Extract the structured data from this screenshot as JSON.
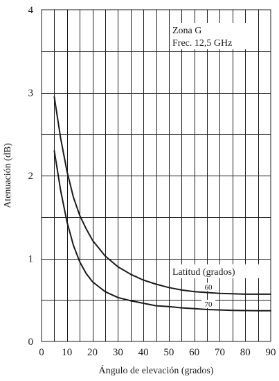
{
  "chart_data": {
    "type": "line",
    "title": "",
    "xlabel": "Ángulo de elevación (grados)",
    "ylabel": "Atenuación (dB)",
    "xlim": [
      0,
      90
    ],
    "ylim": [
      0,
      4
    ],
    "xticks": [
      0,
      10,
      20,
      30,
      40,
      50,
      60,
      70,
      80,
      90
    ],
    "yticks": [
      0,
      1,
      2,
      3,
      4
    ],
    "x_minor_step": 5,
    "y_minor_step": 0.5,
    "grid": true,
    "annotations": [
      "Zona G",
      "Frec. 12,5 GHz"
    ],
    "legend_title": "Latitud (grados)",
    "series": [
      {
        "name": "60",
        "x": [
          5,
          7.5,
          10,
          12.5,
          15,
          17.5,
          20,
          25,
          30,
          35,
          40,
          45,
          50,
          55,
          60,
          65,
          70,
          75,
          80,
          85,
          90
        ],
        "values": [
          2.95,
          2.45,
          2.05,
          1.74,
          1.52,
          1.36,
          1.22,
          1.03,
          0.9,
          0.81,
          0.74,
          0.69,
          0.65,
          0.62,
          0.6,
          0.59,
          0.58,
          0.575,
          0.57,
          0.57,
          0.57
        ]
      },
      {
        "name": "70",
        "x": [
          5,
          7.5,
          10,
          12.5,
          15,
          17.5,
          20,
          25,
          30,
          35,
          40,
          45,
          50,
          55,
          60,
          65,
          70,
          75,
          80,
          85,
          90
        ],
        "values": [
          2.3,
          1.82,
          1.44,
          1.16,
          0.96,
          0.82,
          0.72,
          0.6,
          0.53,
          0.49,
          0.46,
          0.43,
          0.42,
          0.405,
          0.395,
          0.385,
          0.38,
          0.375,
          0.372,
          0.37,
          0.37
        ]
      }
    ]
  }
}
